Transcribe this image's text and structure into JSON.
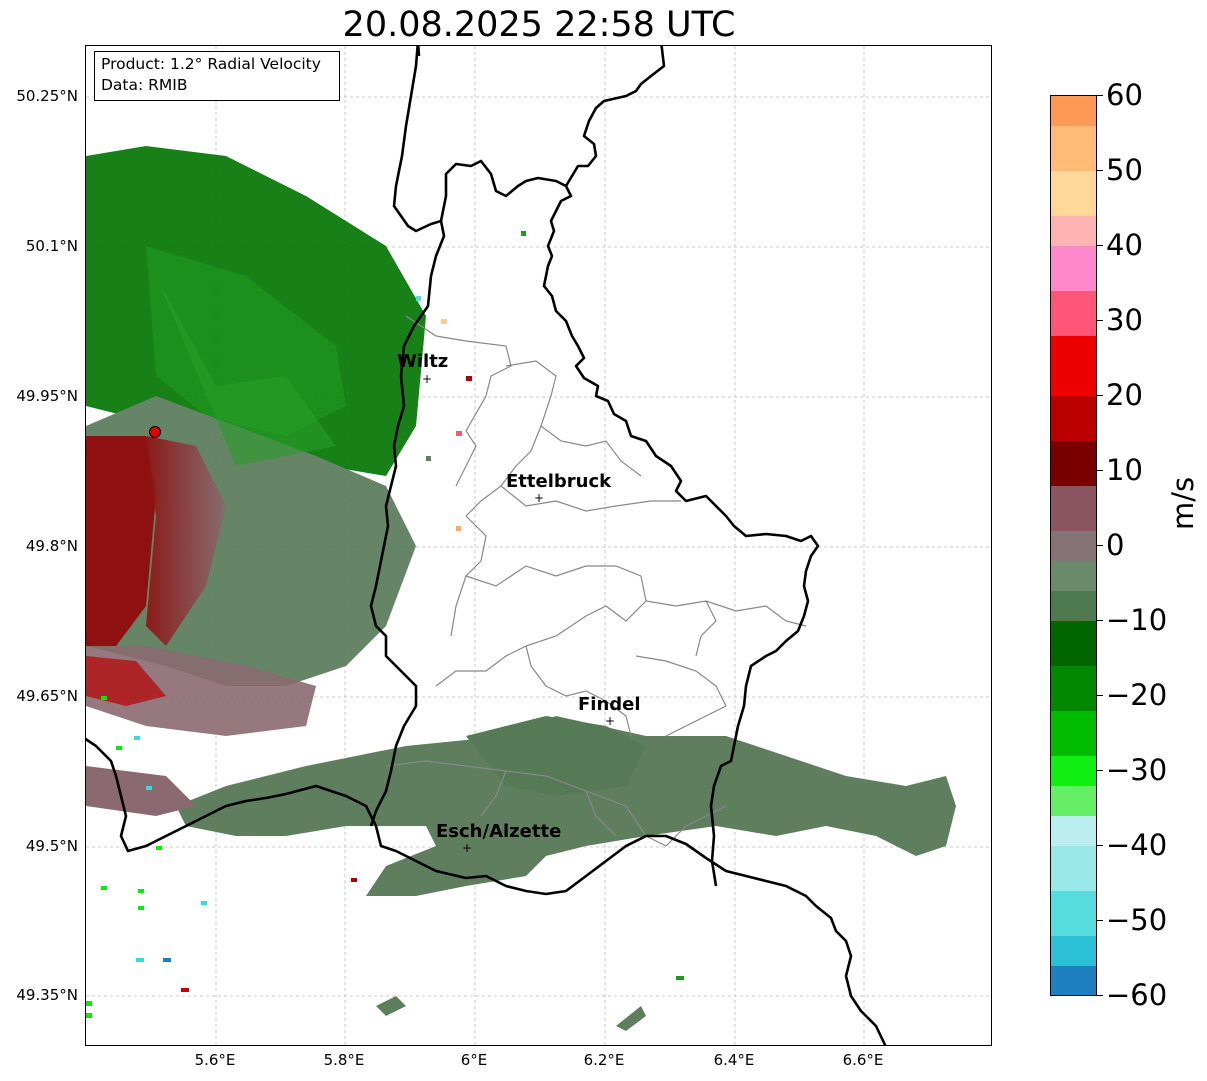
{
  "title": "20.08.2025 22:58 UTC",
  "info_box": {
    "product": "Product: 1.2° Radial Velocity",
    "source": "Data: RMIB"
  },
  "axes": {
    "lat_ticks": [
      "50.25°N",
      "50.1°N",
      "49.95°N",
      "49.8°N",
      "49.65°N",
      "49.5°N",
      "49.35°N"
    ],
    "lon_ticks": [
      "5.6°E",
      "5.8°E",
      "6°E",
      "6.2°E",
      "6.4°E",
      "6.6°E"
    ],
    "grid": true
  },
  "cities": [
    {
      "name": "Wiltz"
    },
    {
      "name": "Ettelbruck"
    },
    {
      "name": "Findel"
    },
    {
      "name": "Esch/Alzette"
    }
  ],
  "radar_site_color": "#e00000",
  "colorbar": {
    "unit": "m/s",
    "ticks": [
      "60",
      "50",
      "40",
      "30",
      "20",
      "10",
      "0",
      "−10",
      "−20",
      "−30",
      "−40",
      "−50",
      "−60"
    ],
    "range": [
      -60,
      60
    ]
  },
  "colors": {
    "velocity_away_strong": "#cc0000",
    "velocity_away_weak": "#8a6a6e",
    "velocity_zero": "#5e7e5e",
    "velocity_toward_weak": "#0a7a0a",
    "velocity_toward_strong": "#00ee00",
    "velocity_toward_fast": "#33dddd"
  }
}
